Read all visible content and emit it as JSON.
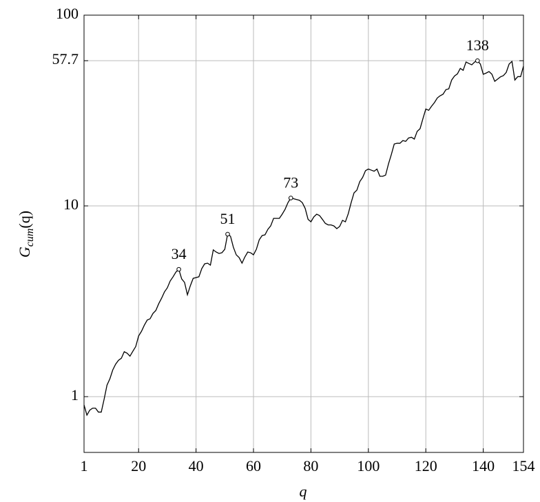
{
  "chart_data": {
    "type": "line",
    "ylabel": {
      "base": "G",
      "sub": "cum",
      "rest": "(q)"
    },
    "xlabel": "q",
    "xlim": [
      1,
      154
    ],
    "ylim": [
      0.51,
      100
    ],
    "log_y": true,
    "grid": true,
    "color": "#000000",
    "xticks": [
      1,
      20,
      40,
      60,
      80,
      100,
      120,
      140,
      154
    ],
    "yticks": [
      1,
      10,
      57.7,
      100
    ],
    "x": [
      1,
      2,
      3,
      4,
      5,
      6,
      7,
      8,
      9,
      10,
      11,
      12,
      13,
      14,
      15,
      16,
      17,
      18,
      19,
      20,
      21,
      22,
      23,
      24,
      25,
      26,
      27,
      28,
      29,
      30,
      31,
      32,
      33,
      34,
      35,
      36,
      37,
      38,
      39,
      40,
      41,
      42,
      43,
      44,
      45,
      46,
      47,
      48,
      49,
      50,
      51,
      52,
      53,
      54,
      55,
      56,
      57,
      58,
      59,
      60,
      61,
      62,
      63,
      64,
      65,
      66,
      67,
      68,
      69,
      70,
      71,
      72,
      73,
      74,
      75,
      76,
      77,
      78,
      79,
      80,
      81,
      82,
      83,
      84,
      85,
      86,
      87,
      88,
      89,
      90,
      91,
      92,
      93,
      94,
      95,
      96,
      97,
      98,
      99,
      100,
      101,
      102,
      103,
      104,
      105,
      106,
      107,
      108,
      109,
      110,
      111,
      112,
      113,
      114,
      115,
      116,
      117,
      118,
      119,
      120,
      121,
      122,
      123,
      124,
      125,
      126,
      127,
      128,
      129,
      130,
      131,
      132,
      133,
      134,
      135,
      136,
      137,
      138,
      139,
      140,
      141,
      142,
      143,
      144,
      145,
      146,
      147,
      148,
      149,
      150,
      151,
      152,
      153,
      154
    ],
    "values": [
      0.905,
      0.8,
      0.85,
      0.87,
      0.87,
      0.83,
      0.83,
      0.97,
      1.15,
      1.24,
      1.38,
      1.48,
      1.55,
      1.59,
      1.72,
      1.69,
      1.63,
      1.73,
      1.83,
      2.08,
      2.2,
      2.37,
      2.52,
      2.56,
      2.73,
      2.83,
      3.07,
      3.28,
      3.54,
      3.72,
      4.04,
      4.25,
      4.5,
      4.65,
      4.14,
      3.97,
      3.42,
      3.81,
      4.17,
      4.21,
      4.25,
      4.69,
      4.97,
      5.01,
      4.89,
      5.88,
      5.73,
      5.63,
      5.68,
      5.92,
      7.11,
      6.93,
      6.07,
      5.54,
      5.36,
      5.01,
      5.4,
      5.73,
      5.68,
      5.54,
      5.92,
      6.64,
      6.99,
      7.05,
      7.53,
      7.86,
      8.6,
      8.6,
      8.6,
      9.05,
      9.6,
      10.4,
      11.0,
      10.9,
      10.8,
      10.7,
      10.4,
      9.7,
      8.5,
      8.25,
      8.75,
      9.05,
      8.9,
      8.5,
      8.1,
      7.95,
      7.95,
      7.85,
      7.6,
      7.8,
      8.4,
      8.25,
      9.1,
      10.4,
      11.7,
      12.1,
      13.4,
      14.1,
      15.3,
      15.6,
      15.4,
      15.2,
      15.6,
      14.3,
      14.3,
      14.5,
      16.6,
      18.6,
      21.1,
      21.3,
      21.3,
      22.0,
      21.8,
      22.7,
      22.9,
      22.4,
      24.6,
      25.4,
      28.7,
      32.2,
      31.7,
      33.3,
      34.8,
      36.8,
      37.8,
      38.5,
      40.7,
      41.1,
      45.7,
      48.0,
      49.2,
      52.6,
      51.4,
      56.8,
      55.8,
      54.9,
      56.8,
      57.7,
      55.4,
      49.0,
      49.7,
      50.6,
      49.0,
      45.0,
      46.2,
      47.5,
      48.2,
      50.1,
      55.4,
      57.2,
      45.7,
      47.6,
      47.6,
      54.0
    ],
    "annotations": [
      {
        "x": 34,
        "label": "34"
      },
      {
        "x": 51,
        "label": "51"
      },
      {
        "x": 73,
        "label": "73"
      },
      {
        "x": 138,
        "label": "138"
      }
    ]
  }
}
